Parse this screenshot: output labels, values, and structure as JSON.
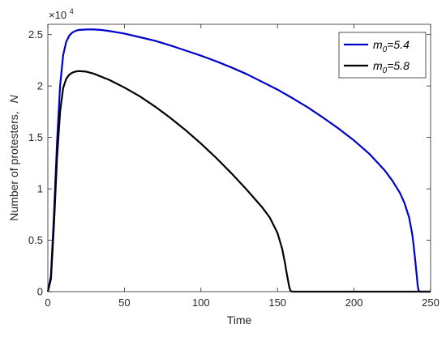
{
  "chart_data": {
    "type": "line",
    "xlabel": "Time",
    "ylabel": "Number of protesters,",
    "ylabel_var": "N",
    "y_exponent_label": "×10",
    "y_exponent_power": "4",
    "xlim": [
      0,
      250
    ],
    "ylim": [
      0,
      2.6
    ],
    "y_scale_factor": 10000,
    "x_ticks": [
      0,
      50,
      100,
      150,
      200,
      250
    ],
    "x_tick_labels": [
      "0",
      "50",
      "100",
      "150",
      "200",
      "250"
    ],
    "y_ticks": [
      0,
      0.5,
      1,
      1.5,
      2,
      2.5
    ],
    "y_tick_labels": [
      "0",
      "0.5",
      "1",
      "1.5",
      "2",
      "2.5"
    ],
    "grid": false,
    "legend_position": "top-right",
    "series": [
      {
        "name_main": "m",
        "name_sub": "0",
        "name_rest": "=5.4",
        "color": "#0000cc",
        "x": [
          0,
          2,
          4,
          6,
          8,
          10,
          12,
          14,
          16,
          18,
          20,
          25,
          30,
          35,
          40,
          50,
          60,
          70,
          80,
          90,
          100,
          110,
          120,
          130,
          140,
          150,
          160,
          170,
          180,
          190,
          200,
          210,
          220,
          225,
          230,
          233,
          236,
          238,
          239,
          240,
          241,
          241.5,
          242,
          242.5,
          243,
          250
        ],
        "y": [
          0,
          0.15,
          0.75,
          1.45,
          2.0,
          2.3,
          2.43,
          2.49,
          2.52,
          2.535,
          2.545,
          2.55,
          2.55,
          2.545,
          2.535,
          2.51,
          2.475,
          2.44,
          2.395,
          2.345,
          2.295,
          2.24,
          2.18,
          2.115,
          2.04,
          1.965,
          1.88,
          1.79,
          1.69,
          1.585,
          1.47,
          1.34,
          1.18,
          1.08,
          0.96,
          0.86,
          0.72,
          0.56,
          0.44,
          0.3,
          0.15,
          0.07,
          0.02,
          0.005,
          0,
          0
        ]
      },
      {
        "name_main": "m",
        "name_sub": "0",
        "name_rest": "=5.8",
        "color": "#000000",
        "x": [
          0,
          2,
          4,
          6,
          8,
          10,
          12,
          14,
          16,
          18,
          20,
          25,
          30,
          40,
          50,
          60,
          70,
          80,
          90,
          100,
          110,
          120,
          130,
          140,
          145,
          150,
          153,
          155,
          156,
          157,
          157.5,
          158,
          158.5,
          159,
          160,
          250
        ],
        "y": [
          0,
          0.12,
          0.65,
          1.3,
          1.75,
          1.98,
          2.07,
          2.11,
          2.13,
          2.14,
          2.145,
          2.14,
          2.12,
          2.06,
          1.985,
          1.9,
          1.8,
          1.69,
          1.57,
          1.44,
          1.3,
          1.15,
          0.99,
          0.82,
          0.72,
          0.57,
          0.42,
          0.27,
          0.18,
          0.1,
          0.06,
          0.03,
          0.01,
          0.003,
          0,
          0
        ]
      }
    ]
  }
}
